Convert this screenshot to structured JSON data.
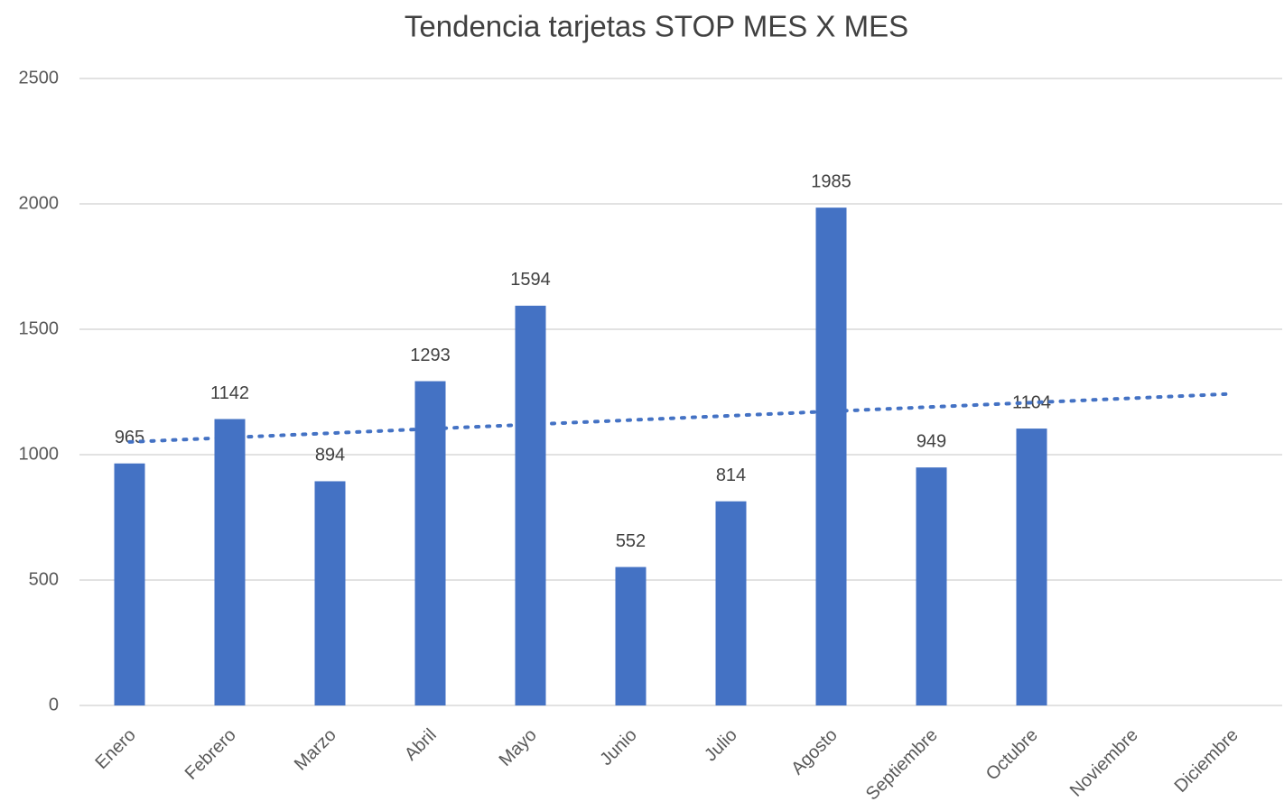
{
  "chart_data": {
    "type": "bar",
    "title": "Tendencia tarjetas STOP MES X MES",
    "categories": [
      "Enero",
      "Febrero",
      "Marzo",
      "Abril",
      "Mayo",
      "Junio",
      "Julio",
      "Agosto",
      "Septiembre",
      "Octubre",
      "Noviembre",
      "Diciembre"
    ],
    "values": [
      965,
      1142,
      894,
      1293,
      1594,
      552,
      814,
      1985,
      949,
      1104,
      null,
      null
    ],
    "color": "#4472c4",
    "trendline": "linear",
    "ylim": [
      0,
      2500
    ],
    "yticks": [
      0,
      500,
      1000,
      1500,
      2000,
      2500
    ],
    "grid": true
  }
}
